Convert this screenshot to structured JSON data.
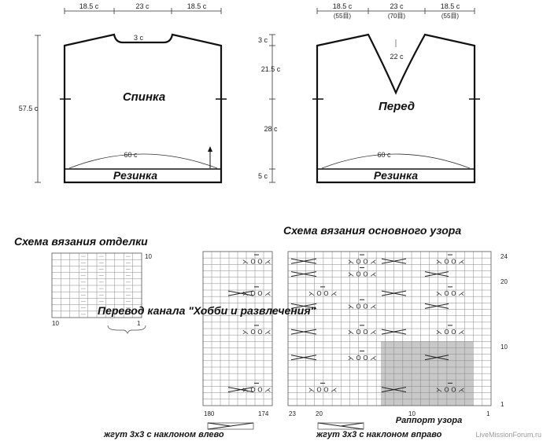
{
  "back": {
    "dims_top": [
      "18.5 с",
      "23 с",
      "18.5 с"
    ],
    "neck_depth": "3 с",
    "label": "Спинка",
    "hem_width": "60 с",
    "band_label": "Резинка",
    "total_height": "57.5 с"
  },
  "side_dims": [
    "3 с",
    "21.5 с",
    "28 с",
    "5 с"
  ],
  "front": {
    "dims_top": [
      "18.5 с",
      "23 с",
      "18.5 с"
    ],
    "stitches_top": [
      "(55目)",
      "(70目)",
      "(55目)"
    ],
    "neck_depth": "22 с",
    "label": "Перед",
    "hem_width": "60 с",
    "band_label": "Резинка"
  },
  "trim_chart": {
    "title": "Схема вязания отделки",
    "row_label": "10",
    "col_left": "10",
    "col_right": "1"
  },
  "main_chart": {
    "title": "Схема вязания основного узора",
    "row_labels": [
      "24",
      "20",
      "10",
      "1"
    ],
    "col_labels_left": [
      "180",
      "174"
    ],
    "col_labels_right": [
      "23",
      "20",
      "10",
      "1"
    ],
    "repeat_label": "Раппорт узора"
  },
  "overlay_text": "Перевод канала \"Хобби и развлечения\"",
  "legend": {
    "cable_left": "жгут 3х3 с наклоном влево",
    "cable_right": "жгут 3х3 с наклоном вправо"
  },
  "watermark": "LiveMissionForum.ru",
  "colors": {
    "line": "#111111",
    "grid": "#888888",
    "repeat_fill": "#c8c8c8"
  }
}
